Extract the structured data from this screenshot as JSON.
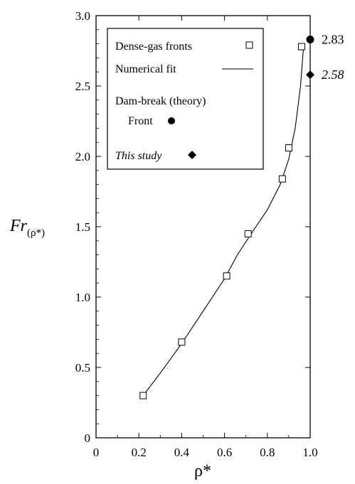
{
  "chart_data": {
    "type": "scatter",
    "xlabel": "ρ*",
    "ylabel": "Fr",
    "ylabel_sub": "(ρ*)",
    "xlim": [
      0,
      1.0
    ],
    "ylim": [
      0,
      3.0
    ],
    "x_ticks": [
      0,
      0.2,
      0.4,
      0.6,
      0.8,
      1.0
    ],
    "x_tick_labels": [
      "0",
      "0.2",
      "0.4",
      "0.6",
      "0.8",
      "1.0"
    ],
    "y_ticks": [
      0,
      0.5,
      1.0,
      1.5,
      2.0,
      2.5,
      3.0
    ],
    "y_tick_labels": [
      "0",
      "0.5",
      "1.0",
      "1.5",
      "2.0",
      "2.5",
      "3.0"
    ],
    "grid": false,
    "legend_position": "top-left",
    "legend": {
      "dense_gas": "Dense-gas fronts",
      "fit": "Numerical fit",
      "dam_break_heading": "Dam-break (theory)",
      "front": "Front",
      "this_study": "This study"
    },
    "series": [
      {
        "name": "Dense-gas fronts",
        "marker": "open-square",
        "points": [
          {
            "x": 0.22,
            "y": 0.3
          },
          {
            "x": 0.4,
            "y": 0.68
          },
          {
            "x": 0.61,
            "y": 1.15
          },
          {
            "x": 0.71,
            "y": 1.45
          },
          {
            "x": 0.87,
            "y": 1.84
          },
          {
            "x": 0.9,
            "y": 2.06
          },
          {
            "x": 0.96,
            "y": 2.78
          }
        ]
      },
      {
        "name": "Numerical fit",
        "marker": "line",
        "points": [
          {
            "x": 0.22,
            "y": 0.3
          },
          {
            "x": 0.3,
            "y": 0.46
          },
          {
            "x": 0.4,
            "y": 0.67
          },
          {
            "x": 0.5,
            "y": 0.9
          },
          {
            "x": 0.6,
            "y": 1.13
          },
          {
            "x": 0.66,
            "y": 1.3
          },
          {
            "x": 0.72,
            "y": 1.44
          },
          {
            "x": 0.8,
            "y": 1.62
          },
          {
            "x": 0.86,
            "y": 1.8
          },
          {
            "x": 0.9,
            "y": 1.98
          },
          {
            "x": 0.93,
            "y": 2.2
          },
          {
            "x": 0.955,
            "y": 2.5
          },
          {
            "x": 0.97,
            "y": 2.8
          }
        ]
      },
      {
        "name": "Front",
        "marker": "filled-circle",
        "points": [
          {
            "x": 1.0,
            "y": 2.83
          }
        ]
      },
      {
        "name": "This study",
        "marker": "filled-diamond",
        "points": [
          {
            "x": 1.0,
            "y": 2.58
          }
        ]
      }
    ],
    "annotations": [
      {
        "text": "2.83",
        "x": 1.0,
        "y": 2.83,
        "style": "normal"
      },
      {
        "text": "2.58",
        "x": 1.0,
        "y": 2.58,
        "style": "italic"
      }
    ]
  }
}
